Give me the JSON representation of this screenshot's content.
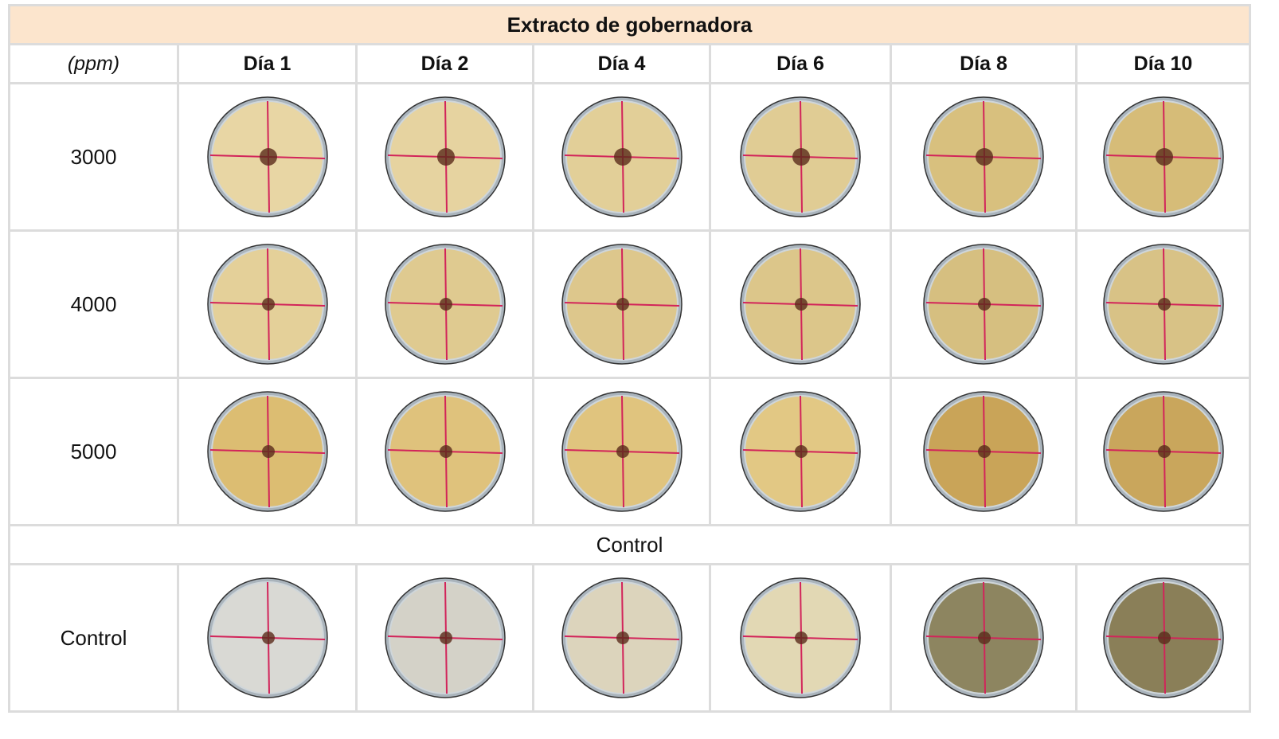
{
  "table": {
    "title": "Extracto de gobernadora",
    "header": [
      "(ppm)",
      "Día 1",
      "Día 2",
      "Día 4",
      "Día 6",
      "Día 8",
      "Día 10"
    ],
    "rows": [
      "3000",
      "4000",
      "5000"
    ],
    "section": "Control",
    "control_label": "Control"
  }
}
